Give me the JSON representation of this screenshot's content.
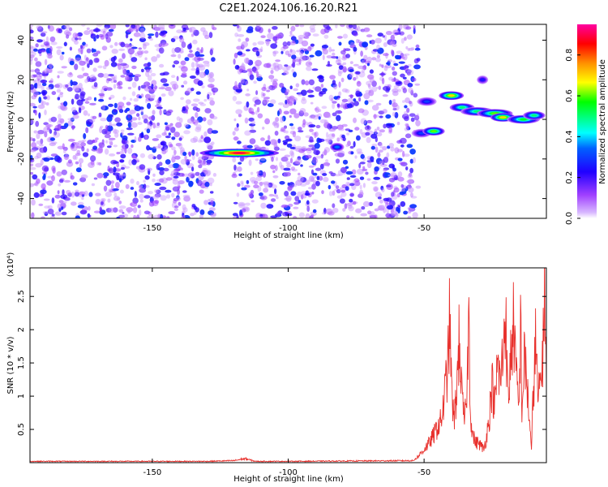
{
  "title": "C2E1.2024.106.16.20.R21",
  "chart_data": [
    {
      "type": "heatmap",
      "xlabel": "Height of straight line (km)",
      "ylabel": "Frequency (Hz)",
      "xlim": [
        -195,
        -5
      ],
      "ylim": [
        -50,
        48
      ],
      "xticks": [
        -150,
        -100,
        -50
      ],
      "yticks": [
        -40,
        -20,
        0,
        20,
        40
      ],
      "grid": false,
      "colorbar": {
        "label": "Normalized spectral amplitude",
        "range": [
          0,
          0.95
        ],
        "ticks": [
          0.0,
          0.2,
          0.4,
          0.6,
          0.8
        ],
        "colors": [
          "#ffffff",
          "#b060ff",
          "#3010ff",
          "#00ffff",
          "#00ff00",
          "#ffff00",
          "#ff8000",
          "#ff0000",
          "#ff00ff"
        ]
      },
      "noise_region": {
        "x_range": [
          -195,
          -52
        ],
        "gap_x": [
          -127,
          -120
        ],
        "amplitude_range": [
          0.05,
          0.3
        ]
      },
      "features": [
        {
          "x": [
            -132,
            -104
          ],
          "f": -17,
          "peak": 0.9
        },
        {
          "x": [
            -84,
            -80
          ],
          "f": -14,
          "peak": 0.35
        },
        {
          "x": [
            -54,
            -48
          ],
          "f": -7,
          "peak": 0.3
        },
        {
          "x": [
            -52,
            -46
          ],
          "f": 9,
          "peak": 0.3
        },
        {
          "x": [
            -50,
            -43
          ],
          "f": -6,
          "peak": 0.6
        },
        {
          "x": [
            -44,
            -36
          ],
          "f": 12,
          "peak": 0.7
        },
        {
          "x": [
            -40,
            -32
          ],
          "f": 6,
          "peak": 0.5
        },
        {
          "x": [
            -36,
            -25
          ],
          "f": 4,
          "peak": 0.5
        },
        {
          "x": [
            -30,
            -27
          ],
          "f": 20,
          "peak": 0.25
        },
        {
          "x": [
            -30,
            -18
          ],
          "f": 3,
          "peak": 0.6
        },
        {
          "x": [
            -25,
            -17
          ],
          "f": 1,
          "peak": 0.7
        },
        {
          "x": [
            -19,
            -8
          ],
          "f": 0,
          "peak": 0.55
        },
        {
          "x": [
            -13,
            -6
          ],
          "f": 2,
          "peak": 0.5
        }
      ]
    },
    {
      "type": "line",
      "xlabel": "Height of straight line (km)",
      "ylabel": "SNR (10 * v/v)",
      "y_multiplier": "(x10⁴)",
      "xlim": [
        -195,
        -5
      ],
      "ylim": [
        0,
        2.93
      ],
      "xticks": [
        -150,
        -100,
        -50
      ],
      "yticks": [
        0.5,
        1.0,
        1.5,
        2.0,
        2.5
      ],
      "ytick_labels": [
        "0.5",
        "1",
        "1.5",
        "2",
        "2.5"
      ],
      "grid": false,
      "series": [
        {
          "color": "#e8302c",
          "x": [
            -195,
            -130,
            -120,
            -116,
            -112,
            -100,
            -54,
            -52,
            -50,
            -48,
            -46,
            -45,
            -44,
            -43,
            -42,
            -41,
            -40.5,
            -40,
            -39,
            -38,
            -37,
            -36,
            -35,
            -34,
            -33.5,
            -33,
            -32,
            -31,
            -30,
            -29,
            -28,
            -27,
            -26,
            -25,
            -24,
            -23,
            -22,
            -21,
            -20,
            -19.5,
            -19,
            -18,
            -17,
            -16,
            -15,
            -14.5,
            -14,
            -13,
            -12,
            -11,
            -10.5,
            -10,
            -9,
            -8,
            -7,
            -6.5,
            -6,
            -5.5,
            -5
          ],
          "y": [
            0.02,
            0.02,
            0.03,
            0.06,
            0.02,
            0.02,
            0.03,
            0.1,
            0.2,
            0.3,
            0.45,
            0.55,
            0.6,
            0.8,
            1.2,
            1.6,
            2.35,
            1.2,
            0.6,
            1.1,
            1.9,
            0.9,
            0.6,
            1.4,
            2.25,
            0.8,
            0.4,
            0.3,
            0.3,
            0.25,
            0.2,
            0.4,
            0.7,
            1.2,
            0.8,
            1.5,
            1.2,
            1.6,
            2.45,
            1.3,
            0.9,
            1.7,
            2.1,
            1.2,
            0.8,
            2.2,
            0.8,
            1.6,
            1.1,
            0.5,
            0.15,
            0.9,
            1.8,
            0.9,
            1.3,
            1.6,
            2.0,
            2.93,
            1.2
          ]
        }
      ]
    }
  ]
}
